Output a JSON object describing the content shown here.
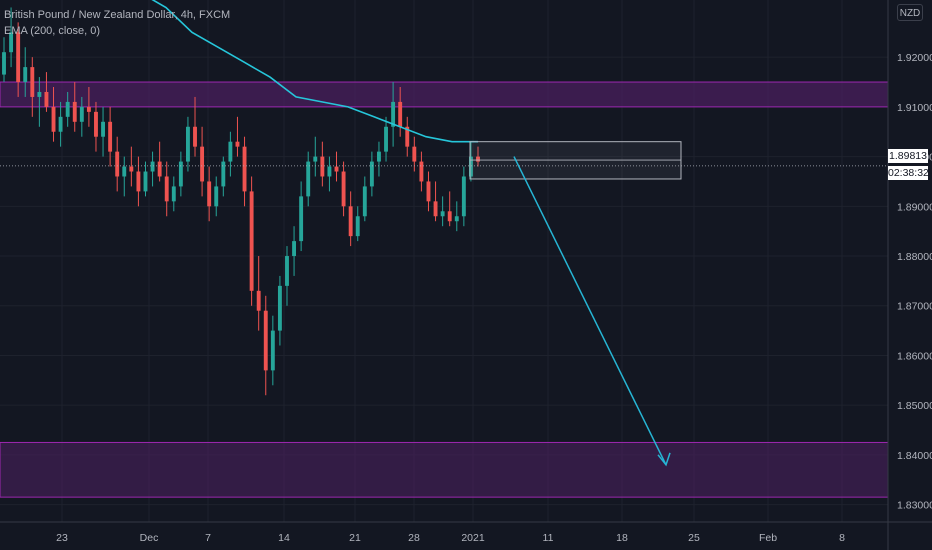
{
  "header": {
    "symbol_text": "British Pound / New Zealand Dollar, 4h, FXCM",
    "indicator_text": "EMA (200, close, 0)"
  },
  "price_axis": {
    "unit_button": "NZD",
    "current_price": "1.89813",
    "countdown": "02:38:32"
  },
  "colors": {
    "background": "#131722",
    "bull": "#26a69a",
    "bear": "#ef5350",
    "ema": "#26c6da",
    "zone_fill": "#4a1f5e",
    "zone_border": "#9c27b0",
    "arrow": "#26b5d4",
    "box": "#b2b5be"
  },
  "chart_data": {
    "type": "candlestick",
    "y_axis": {
      "range": [
        1.8265,
        1.9315
      ],
      "ticks": [
        "1.92000",
        "1.91000",
        "1.90000",
        "1.89000",
        "1.88000",
        "1.87000",
        "1.86000",
        "1.85000",
        "1.84000",
        "1.83000"
      ]
    },
    "x_axis": {
      "ticks": [
        "23",
        "Dec",
        "7",
        "14",
        "21",
        "28",
        "2021",
        "11",
        "18",
        "25",
        "Feb",
        "8"
      ]
    },
    "candles_ohlc": [
      [
        1.9165,
        1.924,
        1.915,
        1.921
      ],
      [
        1.921,
        1.93,
        1.918,
        1.925
      ],
      [
        1.925,
        1.927,
        1.912,
        1.915
      ],
      [
        1.915,
        1.922,
        1.912,
        1.918
      ],
      [
        1.918,
        1.92,
        1.908,
        1.912
      ],
      [
        1.912,
        1.916,
        1.906,
        1.913
      ],
      [
        1.913,
        1.917,
        1.909,
        1.91
      ],
      [
        1.91,
        1.914,
        1.903,
        1.905
      ],
      [
        1.905,
        1.911,
        1.902,
        1.908
      ],
      [
        1.908,
        1.913,
        1.906,
        1.911
      ],
      [
        1.911,
        1.915,
        1.905,
        1.907
      ],
      [
        1.907,
        1.912,
        1.904,
        1.91
      ],
      [
        1.91,
        1.914,
        1.906,
        1.909
      ],
      [
        1.909,
        1.911,
        1.901,
        1.904
      ],
      [
        1.904,
        1.91,
        1.9,
        1.907
      ],
      [
        1.907,
        1.91,
        1.898,
        1.901
      ],
      [
        1.901,
        1.904,
        1.893,
        1.896
      ],
      [
        1.896,
        1.9,
        1.892,
        1.898
      ],
      [
        1.898,
        1.902,
        1.894,
        1.897
      ],
      [
        1.897,
        1.9,
        1.89,
        1.893
      ],
      [
        1.893,
        1.899,
        1.892,
        1.897
      ],
      [
        1.897,
        1.901,
        1.894,
        1.899
      ],
      [
        1.899,
        1.903,
        1.895,
        1.896
      ],
      [
        1.896,
        1.899,
        1.888,
        1.891
      ],
      [
        1.891,
        1.896,
        1.889,
        1.894
      ],
      [
        1.894,
        1.901,
        1.892,
        1.899
      ],
      [
        1.899,
        1.908,
        1.897,
        1.906
      ],
      [
        1.906,
        1.912,
        1.9,
        1.902
      ],
      [
        1.902,
        1.906,
        1.892,
        1.895
      ],
      [
        1.895,
        1.898,
        1.887,
        1.89
      ],
      [
        1.89,
        1.896,
        1.888,
        1.894
      ],
      [
        1.894,
        1.9,
        1.892,
        1.899
      ],
      [
        1.899,
        1.905,
        1.896,
        1.903
      ],
      [
        1.903,
        1.908,
        1.9,
        1.902
      ],
      [
        1.902,
        1.904,
        1.89,
        1.893
      ],
      [
        1.893,
        1.896,
        1.87,
        1.873
      ],
      [
        1.873,
        1.88,
        1.865,
        1.869
      ],
      [
        1.869,
        1.872,
        1.852,
        1.857
      ],
      [
        1.857,
        1.868,
        1.854,
        1.865
      ],
      [
        1.865,
        1.876,
        1.862,
        1.874
      ],
      [
        1.874,
        1.882,
        1.87,
        1.88
      ],
      [
        1.88,
        1.886,
        1.876,
        1.883
      ],
      [
        1.883,
        1.895,
        1.881,
        1.892
      ],
      [
        1.892,
        1.901,
        1.89,
        1.899
      ],
      [
        1.899,
        1.904,
        1.896,
        1.9
      ],
      [
        1.9,
        1.903,
        1.894,
        1.896
      ],
      [
        1.896,
        1.9,
        1.893,
        1.898
      ],
      [
        1.898,
        1.901,
        1.895,
        1.897
      ],
      [
        1.897,
        1.899,
        1.888,
        1.89
      ],
      [
        1.89,
        1.893,
        1.882,
        1.884
      ],
      [
        1.884,
        1.89,
        1.883,
        1.888
      ],
      [
        1.888,
        1.896,
        1.887,
        1.894
      ],
      [
        1.894,
        1.901,
        1.892,
        1.899
      ],
      [
        1.899,
        1.903,
        1.896,
        1.901
      ],
      [
        1.901,
        1.908,
        1.899,
        1.906
      ],
      [
        1.906,
        1.915,
        1.902,
        1.911
      ],
      [
        1.911,
        1.914,
        1.904,
        1.906
      ],
      [
        1.906,
        1.908,
        1.9,
        1.902
      ],
      [
        1.902,
        1.904,
        1.897,
        1.899
      ],
      [
        1.899,
        1.901,
        1.893,
        1.895
      ],
      [
        1.895,
        1.897,
        1.889,
        1.891
      ],
      [
        1.891,
        1.895,
        1.887,
        1.888
      ],
      [
        1.888,
        1.892,
        1.886,
        1.889
      ],
      [
        1.889,
        1.893,
        1.886,
        1.887
      ],
      [
        1.887,
        1.891,
        1.885,
        1.888
      ],
      [
        1.888,
        1.898,
        1.886,
        1.896
      ],
      [
        1.896,
        1.903,
        1.895,
        1.9
      ],
      [
        1.9,
        1.902,
        1.898,
        1.899
      ]
    ],
    "ema_200": [
      1.933,
      1.93,
      1.925,
      1.922,
      1.919,
      1.916,
      1.912,
      1.911,
      1.91,
      1.908,
      1.906,
      1.904,
      1.903,
      1.903
    ],
    "annotations": {
      "resistance_zone": [
        1.91,
        1.915
      ],
      "support_zone": [
        1.8315,
        1.8425
      ],
      "rectangle": [
        1.8955,
        1.903
      ],
      "rectangle_midline": 1.8993,
      "arrow_end_price": 1.838
    }
  }
}
